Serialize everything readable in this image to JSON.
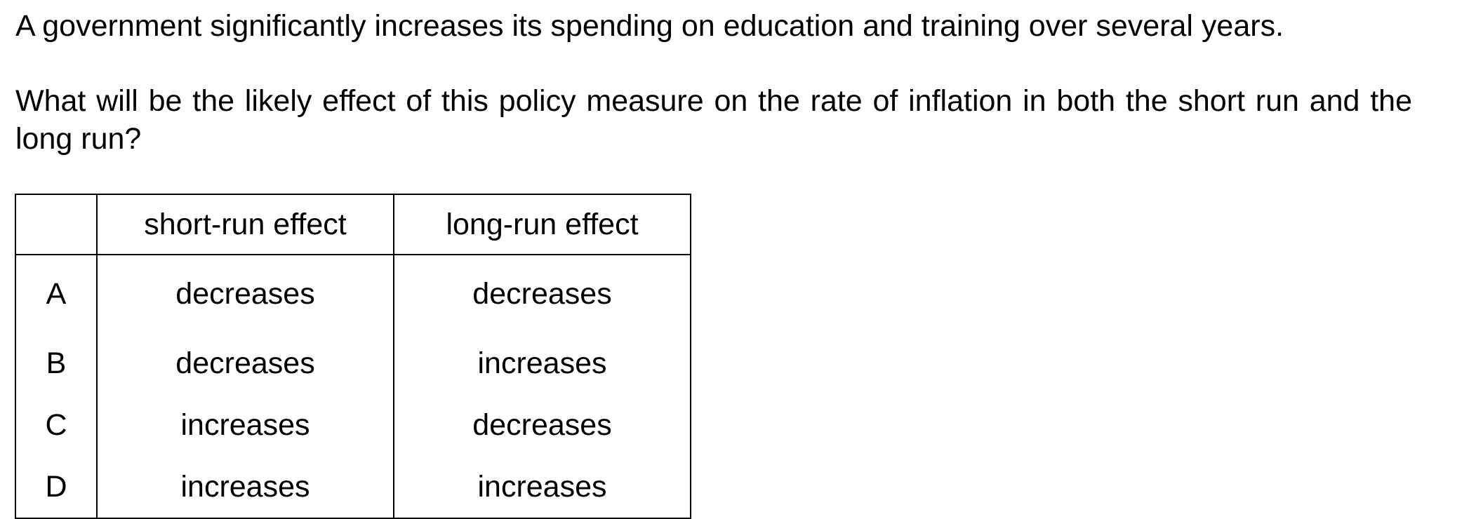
{
  "stem": "A government significantly increases its spending on education and training over several years.",
  "question": "What will be the likely effect of this policy measure on the rate of inflation in both the short run and the long run?",
  "table": {
    "headers": {
      "blank": "",
      "short_run": "short-run effect",
      "long_run": "long-run effect"
    },
    "rows": [
      {
        "letter": "A",
        "short_run": "decreases",
        "long_run": "decreases"
      },
      {
        "letter": "B",
        "short_run": "decreases",
        "long_run": "increases"
      },
      {
        "letter": "C",
        "short_run": "increases",
        "long_run": "decreases"
      },
      {
        "letter": "D",
        "short_run": "increases",
        "long_run": "increases"
      }
    ]
  }
}
